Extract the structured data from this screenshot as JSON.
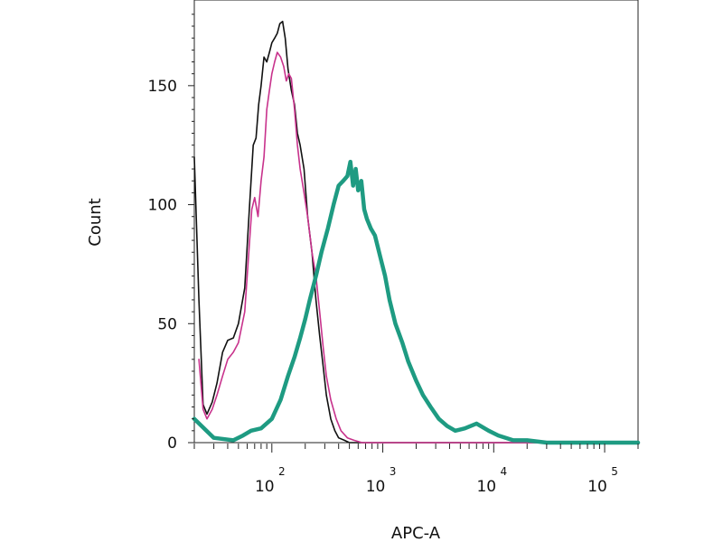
{
  "chart_data": {
    "type": "line",
    "xlabel": "APC-A",
    "ylabel": "Count",
    "x_scale": "log",
    "xlim": [
      20,
      200000
    ],
    "ylim": [
      0,
      186
    ],
    "x_ticks": [
      {
        "value": 100,
        "base": "10",
        "exp": "2"
      },
      {
        "value": 1000,
        "base": "10",
        "exp": "3"
      },
      {
        "value": 10000,
        "base": "10",
        "exp": "4"
      },
      {
        "value": 100000,
        "base": "10",
        "exp": "5"
      }
    ],
    "y_ticks": [
      0,
      50,
      100,
      150
    ],
    "series": [
      {
        "color": "#111111",
        "style": "thin",
        "x": [
          20,
          22,
          24,
          26,
          29,
          32,
          36,
          40,
          45,
          50,
          57,
          63,
          68,
          72,
          76,
          80,
          85,
          90,
          95,
          100,
          106,
          112,
          118,
          125,
          132,
          140,
          150,
          160,
          170,
          180,
          195,
          210,
          230,
          250,
          270,
          290,
          310,
          340,
          370,
          400,
          450,
          500,
          600,
          800,
          1000,
          200000
        ],
        "y": [
          120,
          60,
          16,
          12,
          17,
          25,
          38,
          43,
          44,
          50,
          65,
          100,
          125,
          128,
          142,
          150,
          162,
          160,
          164,
          168,
          170,
          172,
          176,
          177,
          170,
          157,
          148,
          142,
          130,
          125,
          115,
          95,
          80,
          60,
          45,
          32,
          20,
          10,
          5,
          2,
          1,
          0,
          0,
          0,
          0,
          0
        ]
      },
      {
        "color": "#c8328c",
        "style": "thin",
        "x": [
          22,
          24,
          26,
          29,
          32,
          36,
          40,
          45,
          50,
          57,
          62,
          66,
          70,
          75,
          80,
          85,
          90,
          95,
          100,
          106,
          112,
          120,
          128,
          135,
          142,
          150,
          160,
          170,
          180,
          195,
          210,
          230,
          250,
          270,
          290,
          310,
          340,
          380,
          420,
          480,
          550,
          650,
          800,
          1000,
          200000
        ],
        "y": [
          35,
          14,
          10,
          14,
          20,
          28,
          35,
          38,
          42,
          55,
          80,
          98,
          103,
          95,
          110,
          120,
          140,
          148,
          155,
          160,
          164,
          162,
          158,
          152,
          155,
          153,
          140,
          125,
          115,
          105,
          95,
          80,
          70,
          55,
          40,
          28,
          18,
          10,
          5,
          2,
          1,
          0,
          0,
          0,
          0
        ]
      },
      {
        "color": "#1e9b82",
        "style": "thick",
        "x": [
          20,
          30,
          45,
          55,
          65,
          80,
          100,
          120,
          140,
          160,
          180,
          200,
          220,
          250,
          280,
          320,
          360,
          400,
          440,
          480,
          510,
          540,
          570,
          600,
          640,
          680,
          720,
          780,
          850,
          950,
          1050,
          1150,
          1300,
          1500,
          1700,
          2000,
          2300,
          2700,
          3200,
          3800,
          4500,
          5500,
          7000,
          9000,
          11000,
          15000,
          20000,
          30000,
          200000
        ],
        "y": [
          10,
          2,
          1,
          3,
          5,
          6,
          10,
          18,
          28,
          36,
          44,
          52,
          60,
          70,
          80,
          90,
          100,
          108,
          110,
          112,
          118,
          108,
          115,
          106,
          110,
          98,
          94,
          90,
          87,
          78,
          70,
          60,
          50,
          42,
          34,
          26,
          20,
          15,
          10,
          7,
          5,
          6,
          8,
          5,
          3,
          1,
          1,
          0,
          0
        ]
      }
    ]
  }
}
